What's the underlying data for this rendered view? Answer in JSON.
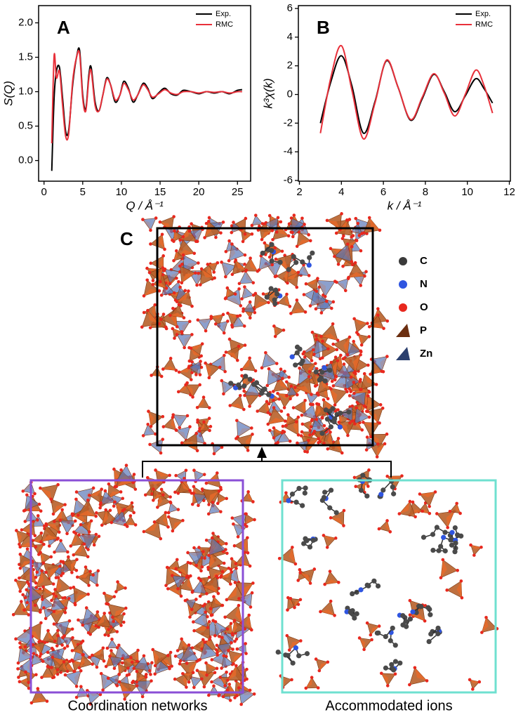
{
  "chart_data": [
    {
      "type": "line",
      "panel": "A",
      "y_label": "S(Q)",
      "x_label": "Q / Å⁻¹",
      "xlim": [
        -0.7,
        26.7
      ],
      "ylim": [
        -0.3,
        2.25
      ],
      "xticks": [
        0,
        5,
        10,
        15,
        20,
        25
      ],
      "yticks": [
        {
          "value": 0,
          "label": "0.0"
        },
        {
          "value": 0.5,
          "label": "0.5"
        },
        {
          "value": 1,
          "label": "1.0"
        },
        {
          "value": 1.5,
          "label": "1.5"
        },
        {
          "value": 2,
          "label": "2.0"
        }
      ],
      "legend": "upper right",
      "x": [
        1.0,
        1.3,
        1.6,
        2.0,
        2.4,
        2.8,
        3.2,
        3.7,
        4.2,
        4.6,
        5.0,
        5.4,
        5.8,
        6.1,
        6.6,
        7.1,
        7.6,
        8.1,
        8.6,
        9.2,
        9.8,
        10.3,
        10.9,
        11.5,
        12.1,
        12.8,
        13.4,
        14.0,
        14.8,
        15.6,
        16.4,
        17.2,
        18.0,
        19.0,
        20.0,
        21.0,
        22.0,
        23.0,
        24.0,
        25.0,
        25.6
      ],
      "series": [
        {
          "name": "Exp.",
          "color": "#000000",
          "values": [
            -0.15,
            0.9,
            1.3,
            1.35,
            0.9,
            0.42,
            0.45,
            1.1,
            1.5,
            1.6,
            0.95,
            0.75,
            1.25,
            1.35,
            0.85,
            0.72,
            0.95,
            1.2,
            1.1,
            0.85,
            0.95,
            1.15,
            1.05,
            0.85,
            0.95,
            1.12,
            1.05,
            0.9,
            0.98,
            1.05,
            0.97,
            0.95,
            1.02,
            1.0,
            0.97,
            1.0,
            0.98,
            1.0,
            0.97,
            1.02,
            1.03
          ]
        },
        {
          "name": "RMC",
          "color": "#e8303a",
          "values": [
            0.25,
            1.52,
            1.2,
            1.3,
            0.8,
            0.35,
            0.4,
            1.15,
            1.5,
            1.55,
            0.9,
            0.72,
            1.2,
            1.3,
            0.8,
            0.72,
            0.95,
            1.18,
            1.1,
            0.88,
            0.95,
            1.12,
            1.03,
            0.88,
            0.95,
            1.1,
            1.03,
            0.92,
            0.97,
            1.03,
            0.98,
            0.96,
            1.0,
            1.0,
            0.98,
            1.0,
            0.99,
            1.0,
            0.98,
            1.0,
            1.0
          ]
        }
      ]
    },
    {
      "type": "line",
      "panel": "B",
      "y_label": "k³χ(k)",
      "x_label": "k / Å⁻¹",
      "xlim": [
        1.95,
        12.05
      ],
      "ylim": [
        -6.05,
        6.2
      ],
      "xticks": [
        2,
        4,
        6,
        8,
        10,
        12
      ],
      "yticks": [
        -6,
        -4,
        -2,
        0,
        2,
        4,
        6
      ],
      "legend": "upper right",
      "x": [
        3.0,
        3.5,
        4.0,
        4.5,
        5.05,
        5.6,
        6.15,
        6.7,
        7.3,
        7.85,
        8.4,
        8.9,
        9.4,
        9.9,
        10.4,
        10.8,
        11.2
      ],
      "series": [
        {
          "name": "Exp.",
          "color": "#000000",
          "values": [
            -2.0,
            0.9,
            2.7,
            0.6,
            -2.7,
            -0.5,
            2.35,
            0.5,
            -1.8,
            -0.3,
            1.4,
            0.2,
            -1.2,
            -0.1,
            1.1,
            0.4,
            -0.6
          ]
        },
        {
          "name": "RMC",
          "color": "#e8303a",
          "values": [
            -2.7,
            1.2,
            3.4,
            0.3,
            -3.1,
            -0.6,
            2.4,
            0.5,
            -1.75,
            -0.2,
            1.45,
            0.1,
            -1.5,
            0.0,
            1.7,
            0.6,
            -1.3
          ]
        }
      ]
    }
  ],
  "structure": {
    "panel": "C",
    "legend": [
      {
        "label": "C",
        "color": "#3a3a3a"
      },
      {
        "label": "N",
        "color": "#2f55e0"
      },
      {
        "label": "O",
        "color": "#e8281e"
      },
      {
        "label": "P",
        "color": "#6b2e10"
      },
      {
        "label": "Zn",
        "color": "#2b3f6e"
      }
    ],
    "captions": [
      "Coordination networks",
      "Accommodated ions"
    ]
  }
}
